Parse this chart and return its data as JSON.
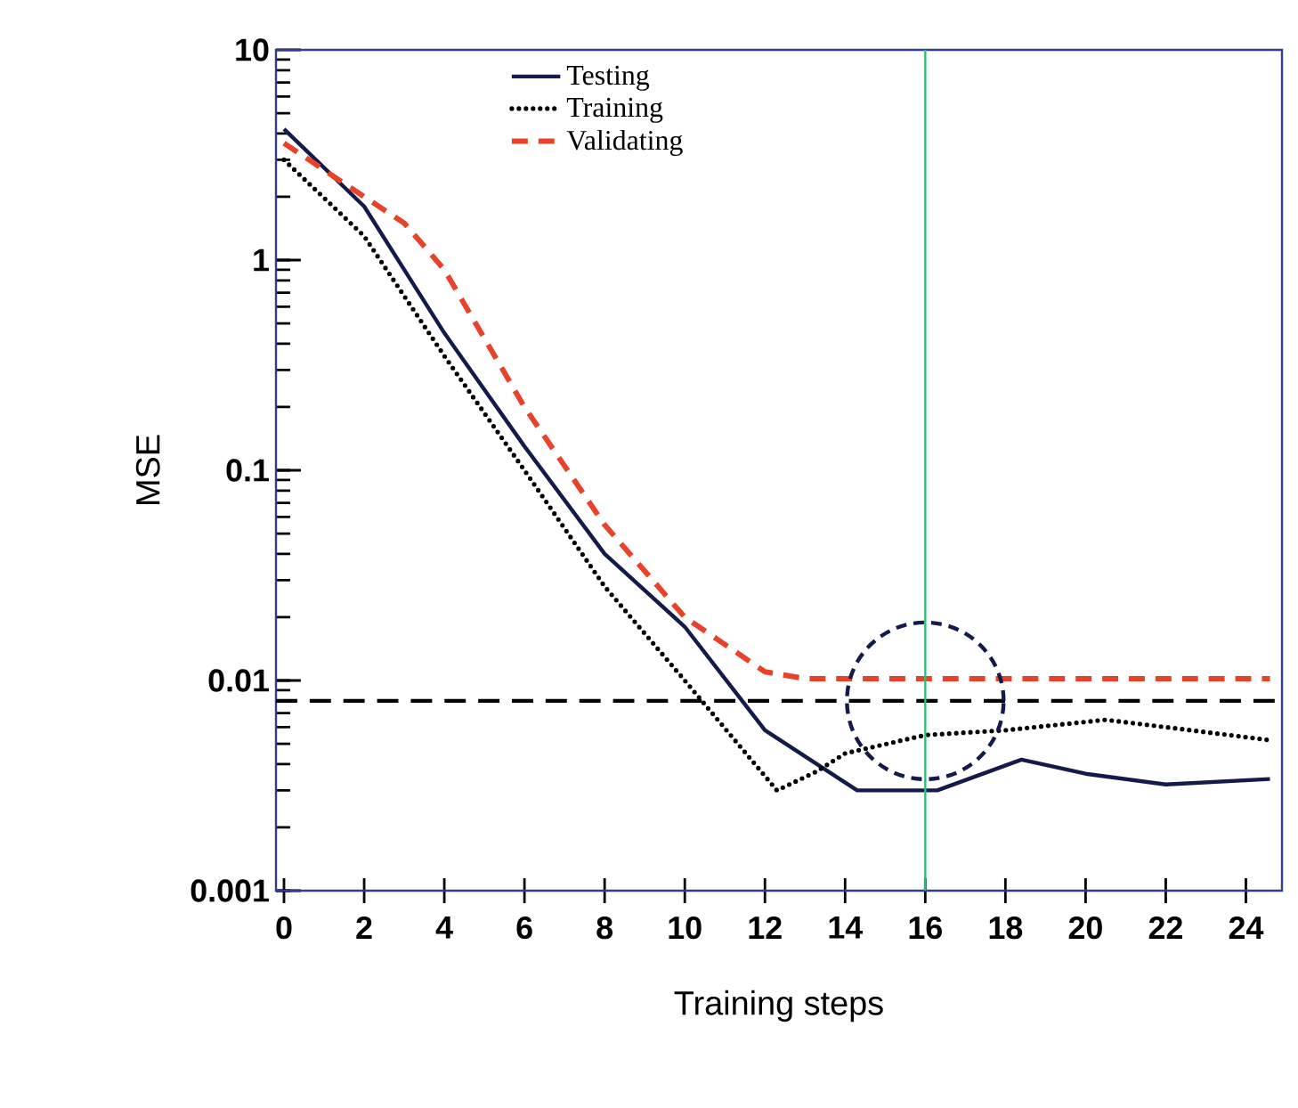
{
  "chart_data": {
    "type": "line",
    "xlabel": "Training steps",
    "ylabel": "MSE",
    "xlim": [
      -0.2,
      24.9
    ],
    "xticks": [
      0,
      2,
      4,
      6,
      8,
      10,
      12,
      14,
      16,
      18,
      20,
      22,
      24
    ],
    "ylim": [
      0.001,
      10
    ],
    "yticks": [
      0.001,
      0.01,
      0.1,
      1,
      10
    ],
    "log": "y",
    "grid": false,
    "legend": "top",
    "series": [
      {
        "name": "Testing",
        "color": "#141a4a",
        "line_style": "solid",
        "x": [
          0,
          2,
          4,
          6,
          8,
          10,
          12,
          14.3,
          16.3,
          18.4,
          20,
          22,
          24.6
        ],
        "values": [
          4.2,
          1.8,
          0.45,
          0.13,
          0.04,
          0.018,
          0.0058,
          0.003,
          0.003,
          0.0042,
          0.0036,
          0.0032,
          0.0034
        ]
      },
      {
        "name": "Training",
        "color": "#000000",
        "line_style": "dotted",
        "x": [
          0,
          2,
          4,
          6,
          8,
          10,
          12.3,
          13.3,
          14,
          16,
          18,
          20.5,
          22,
          24.6
        ],
        "values": [
          3.0,
          1.3,
          0.35,
          0.1,
          0.028,
          0.01,
          0.003,
          0.0037,
          0.0045,
          0.0055,
          0.0058,
          0.0065,
          0.006,
          0.0052
        ]
      },
      {
        "name": "Validating",
        "color": "#e8432a",
        "line_style": "dashed",
        "x": [
          0,
          2,
          3,
          4,
          6,
          8,
          10,
          12,
          13,
          24.6
        ],
        "values": [
          3.6,
          2.0,
          1.5,
          0.9,
          0.2,
          0.055,
          0.02,
          0.011,
          0.0102,
          0.0102
        ]
      }
    ],
    "ref_lines": [
      {
        "axis": "y",
        "value": 0.008,
        "color": "#000000",
        "line_style": "dashed"
      },
      {
        "axis": "x",
        "value": 16,
        "color": "#2fbf7a",
        "line_style": "solid"
      }
    ]
  }
}
